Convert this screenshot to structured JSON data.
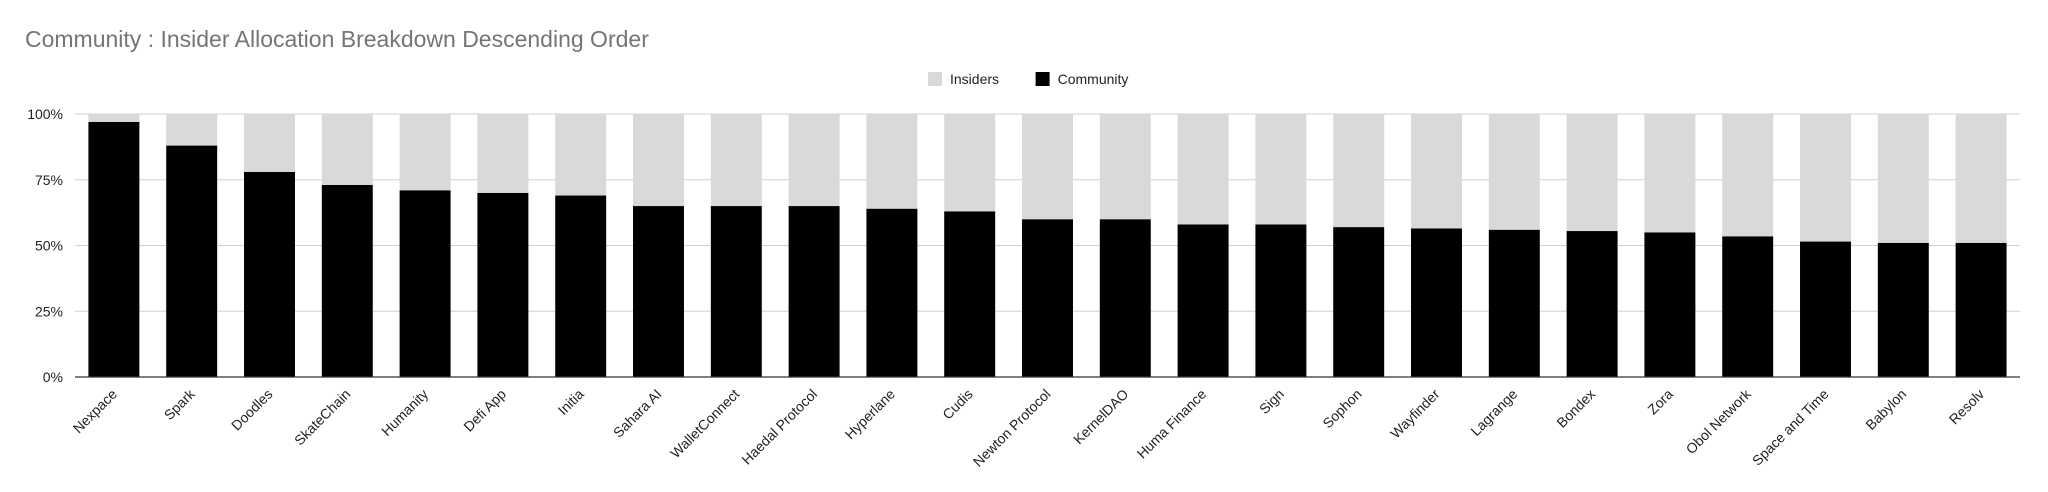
{
  "chart_data": {
    "type": "bar",
    "stacked": true,
    "normalized": true,
    "title": "Community : Insider Allocation Breakdown Descending Order",
    "xlabel": "",
    "ylabel": "",
    "ylim": [
      0,
      100
    ],
    "yticks": [
      "0%",
      "25%",
      "50%",
      "75%",
      "100%"
    ],
    "legend_position": "top-center",
    "grid": true,
    "categories": [
      "Nexpace",
      "Spark",
      "Doodles",
      "SkateChain",
      "Humanity",
      "Defi App",
      "Initia",
      "Sahara AI",
      "WalletConnect",
      "Haedal Protocol",
      "Hyperlane",
      "Cudis",
      "Newton Protocol",
      "KernelDAO",
      "Huma Finance",
      "Sign",
      "Sophon",
      "Wayfinder",
      "Lagrange",
      "Bondex",
      "Zora",
      "Obol Network",
      "Space and Time",
      "Babylon",
      "Resolv"
    ],
    "series": [
      {
        "name": "Insiders",
        "color": "#d9d9d9",
        "values": [
          3,
          12,
          22,
          27,
          29,
          30,
          31,
          35,
          35,
          35,
          36,
          37,
          40,
          40,
          42,
          42,
          43,
          43.5,
          44,
          44.5,
          45,
          46.5,
          48.5,
          49,
          49
        ]
      },
      {
        "name": "Community",
        "color": "#000000",
        "values": [
          97,
          88,
          78,
          73,
          71,
          70,
          69,
          65,
          65,
          65,
          64,
          63,
          60,
          60,
          58,
          58,
          57,
          56.5,
          56,
          55.5,
          55,
          53.5,
          51.5,
          51,
          51
        ]
      }
    ]
  }
}
